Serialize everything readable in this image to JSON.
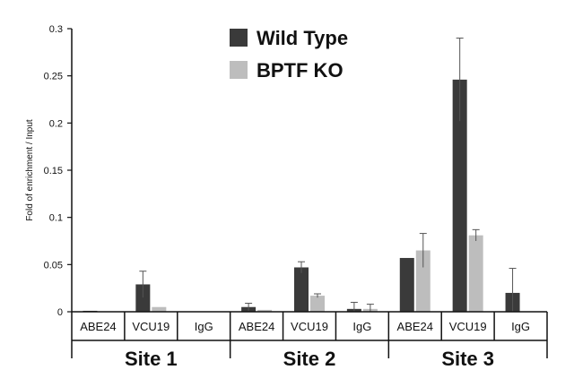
{
  "chart_data": {
    "type": "bar",
    "title": "",
    "xlabel": "",
    "ylabel": "Fold of enrichment / Input",
    "ylim": [
      0,
      0.3
    ],
    "yticks": [
      "0",
      "0.05",
      "0.1",
      "0.15",
      "0.2",
      "0.25",
      "0.3"
    ],
    "legend_position": "top-center",
    "groups": [
      "Site 1",
      "Site 2",
      "Site 3"
    ],
    "categories": [
      "ABE24",
      "VCU19",
      "IgG",
      "ABE24",
      "VCU19",
      "IgG",
      "ABE24",
      "VCU19",
      "IgG"
    ],
    "series": [
      {
        "name": "Wild Type",
        "color": "#3a3a3a",
        "values": [
          0.001,
          0.029,
          0.0,
          0.005,
          0.047,
          0.003,
          0.057,
          0.246,
          0.02
        ],
        "errors": [
          0.0,
          0.014,
          0.0,
          0.004,
          0.006,
          0.007,
          0.0,
          0.044,
          0.026
        ]
      },
      {
        "name": "BPTF KO",
        "color": "#bdbdbd",
        "values": [
          0.0,
          0.005,
          0.0,
          0.002,
          0.017,
          0.003,
          0.065,
          0.081,
          0.0
        ],
        "errors": [
          0.0,
          0.0,
          0.0,
          0.0,
          0.002,
          0.005,
          0.018,
          0.006,
          0.0
        ]
      }
    ]
  }
}
